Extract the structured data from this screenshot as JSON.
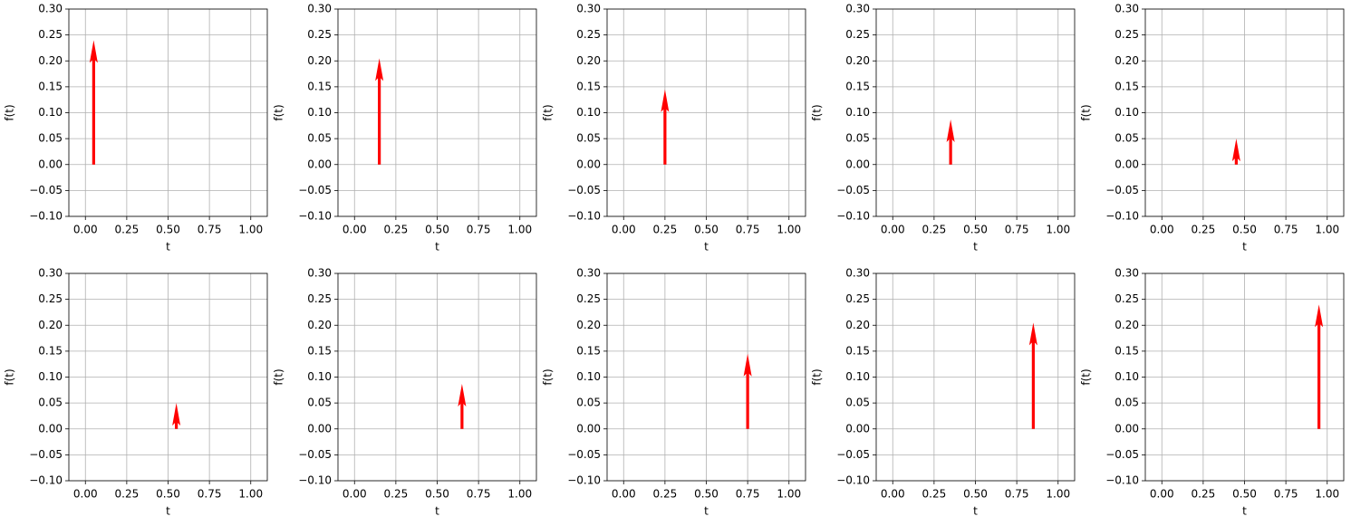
{
  "chart_data": [
    {
      "type": "quiver",
      "x": [
        0.05
      ],
      "values": [
        0.24
      ],
      "color": "#ff0000",
      "xlabel": "t",
      "ylabel": "f(t)",
      "grid": true,
      "xlim": [
        -0.1,
        1.1
      ],
      "ylim": [
        -0.1,
        0.3
      ],
      "xticks": [
        {
          "value": 0,
          "label": "0.00"
        },
        {
          "value": 0.25,
          "label": "0.25"
        },
        {
          "value": 0.5,
          "label": "0.50"
        },
        {
          "value": 0.75,
          "label": "0.75"
        },
        {
          "value": 1,
          "label": "1.00"
        }
      ],
      "yticks": [
        {
          "value": -0.1,
          "label": "−0.10"
        },
        {
          "value": -0.05,
          "label": "−0.05"
        },
        {
          "value": 0,
          "label": "0.00"
        },
        {
          "value": 0.05,
          "label": "0.05"
        },
        {
          "value": 0.1,
          "label": "0.10"
        },
        {
          "value": 0.15,
          "label": "0.15"
        },
        {
          "value": 0.2,
          "label": "0.20"
        },
        {
          "value": 0.25,
          "label": "0.25"
        },
        {
          "value": 0.3,
          "label": "0.30"
        }
      ]
    },
    {
      "type": "quiver",
      "x": [
        0.15
      ],
      "values": [
        0.205
      ],
      "color": "#ff0000",
      "xlabel": "t",
      "ylabel": "f(t)",
      "grid": true,
      "xlim": [
        -0.1,
        1.1
      ],
      "ylim": [
        -0.1,
        0.3
      ],
      "xticks": [
        {
          "value": 0,
          "label": "0.00"
        },
        {
          "value": 0.25,
          "label": "0.25"
        },
        {
          "value": 0.5,
          "label": "0.50"
        },
        {
          "value": 0.75,
          "label": "0.75"
        },
        {
          "value": 1,
          "label": "1.00"
        }
      ],
      "yticks": [
        {
          "value": -0.1,
          "label": "−0.10"
        },
        {
          "value": -0.05,
          "label": "−0.05"
        },
        {
          "value": 0,
          "label": "0.00"
        },
        {
          "value": 0.05,
          "label": "0.05"
        },
        {
          "value": 0.1,
          "label": "0.10"
        },
        {
          "value": 0.15,
          "label": "0.15"
        },
        {
          "value": 0.2,
          "label": "0.20"
        },
        {
          "value": 0.25,
          "label": "0.25"
        },
        {
          "value": 0.3,
          "label": "0.30"
        }
      ]
    },
    {
      "type": "quiver",
      "x": [
        0.25
      ],
      "values": [
        0.145
      ],
      "color": "#ff0000",
      "xlabel": "t",
      "ylabel": "f(t)",
      "grid": true,
      "xlim": [
        -0.1,
        1.1
      ],
      "ylim": [
        -0.1,
        0.3
      ],
      "xticks": [
        {
          "value": 0,
          "label": "0.00"
        },
        {
          "value": 0.25,
          "label": "0.25"
        },
        {
          "value": 0.5,
          "label": "0.50"
        },
        {
          "value": 0.75,
          "label": "0.75"
        },
        {
          "value": 1,
          "label": "1.00"
        }
      ],
      "yticks": [
        {
          "value": -0.1,
          "label": "−0.10"
        },
        {
          "value": -0.05,
          "label": "−0.05"
        },
        {
          "value": 0,
          "label": "0.00"
        },
        {
          "value": 0.05,
          "label": "0.05"
        },
        {
          "value": 0.1,
          "label": "0.10"
        },
        {
          "value": 0.15,
          "label": "0.15"
        },
        {
          "value": 0.2,
          "label": "0.20"
        },
        {
          "value": 0.25,
          "label": "0.25"
        },
        {
          "value": 0.3,
          "label": "0.30"
        }
      ]
    },
    {
      "type": "quiver",
      "x": [
        0.35
      ],
      "values": [
        0.087
      ],
      "color": "#ff0000",
      "xlabel": "t",
      "ylabel": "f(t)",
      "grid": true,
      "xlim": [
        -0.1,
        1.1
      ],
      "ylim": [
        -0.1,
        0.3
      ],
      "xticks": [
        {
          "value": 0,
          "label": "0.00"
        },
        {
          "value": 0.25,
          "label": "0.25"
        },
        {
          "value": 0.5,
          "label": "0.50"
        },
        {
          "value": 0.75,
          "label": "0.75"
        },
        {
          "value": 1,
          "label": "1.00"
        }
      ],
      "yticks": [
        {
          "value": -0.1,
          "label": "−0.10"
        },
        {
          "value": -0.05,
          "label": "−0.05"
        },
        {
          "value": 0,
          "label": "0.00"
        },
        {
          "value": 0.05,
          "label": "0.05"
        },
        {
          "value": 0.1,
          "label": "0.10"
        },
        {
          "value": 0.15,
          "label": "0.15"
        },
        {
          "value": 0.2,
          "label": "0.20"
        },
        {
          "value": 0.25,
          "label": "0.25"
        },
        {
          "value": 0.3,
          "label": "0.30"
        }
      ]
    },
    {
      "type": "quiver",
      "x": [
        0.45
      ],
      "values": [
        0.05
      ],
      "color": "#ff0000",
      "xlabel": "t",
      "ylabel": "f(t)",
      "grid": true,
      "xlim": [
        -0.1,
        1.1
      ],
      "ylim": [
        -0.1,
        0.3
      ],
      "xticks": [
        {
          "value": 0,
          "label": "0.00"
        },
        {
          "value": 0.25,
          "label": "0.25"
        },
        {
          "value": 0.5,
          "label": "0.50"
        },
        {
          "value": 0.75,
          "label": "0.75"
        },
        {
          "value": 1,
          "label": "1.00"
        }
      ],
      "yticks": [
        {
          "value": -0.1,
          "label": "−0.10"
        },
        {
          "value": -0.05,
          "label": "−0.05"
        },
        {
          "value": 0,
          "label": "0.00"
        },
        {
          "value": 0.05,
          "label": "0.05"
        },
        {
          "value": 0.1,
          "label": "0.10"
        },
        {
          "value": 0.15,
          "label": "0.15"
        },
        {
          "value": 0.2,
          "label": "0.20"
        },
        {
          "value": 0.25,
          "label": "0.25"
        },
        {
          "value": 0.3,
          "label": "0.30"
        }
      ]
    },
    {
      "type": "quiver",
      "x": [
        0.55
      ],
      "values": [
        0.05
      ],
      "color": "#ff0000",
      "xlabel": "t",
      "ylabel": "f(t)",
      "grid": true,
      "xlim": [
        -0.1,
        1.1
      ],
      "ylim": [
        -0.1,
        0.3
      ],
      "xticks": [
        {
          "value": 0,
          "label": "0.00"
        },
        {
          "value": 0.25,
          "label": "0.25"
        },
        {
          "value": 0.5,
          "label": "0.50"
        },
        {
          "value": 0.75,
          "label": "0.75"
        },
        {
          "value": 1,
          "label": "1.00"
        }
      ],
      "yticks": [
        {
          "value": -0.1,
          "label": "−0.10"
        },
        {
          "value": -0.05,
          "label": "−0.05"
        },
        {
          "value": 0,
          "label": "0.00"
        },
        {
          "value": 0.05,
          "label": "0.05"
        },
        {
          "value": 0.1,
          "label": "0.10"
        },
        {
          "value": 0.15,
          "label": "0.15"
        },
        {
          "value": 0.2,
          "label": "0.20"
        },
        {
          "value": 0.25,
          "label": "0.25"
        },
        {
          "value": 0.3,
          "label": "0.30"
        }
      ]
    },
    {
      "type": "quiver",
      "x": [
        0.65
      ],
      "values": [
        0.087
      ],
      "color": "#ff0000",
      "xlabel": "t",
      "ylabel": "f(t)",
      "grid": true,
      "xlim": [
        -0.1,
        1.1
      ],
      "ylim": [
        -0.1,
        0.3
      ],
      "xticks": [
        {
          "value": 0,
          "label": "0.00"
        },
        {
          "value": 0.25,
          "label": "0.25"
        },
        {
          "value": 0.5,
          "label": "0.50"
        },
        {
          "value": 0.75,
          "label": "0.75"
        },
        {
          "value": 1,
          "label": "1.00"
        }
      ],
      "yticks": [
        {
          "value": -0.1,
          "label": "−0.10"
        },
        {
          "value": -0.05,
          "label": "−0.05"
        },
        {
          "value": 0,
          "label": "0.00"
        },
        {
          "value": 0.05,
          "label": "0.05"
        },
        {
          "value": 0.1,
          "label": "0.10"
        },
        {
          "value": 0.15,
          "label": "0.15"
        },
        {
          "value": 0.2,
          "label": "0.20"
        },
        {
          "value": 0.25,
          "label": "0.25"
        },
        {
          "value": 0.3,
          "label": "0.30"
        }
      ]
    },
    {
      "type": "quiver",
      "x": [
        0.75
      ],
      "values": [
        0.145
      ],
      "color": "#ff0000",
      "xlabel": "t",
      "ylabel": "f(t)",
      "grid": true,
      "xlim": [
        -0.1,
        1.1
      ],
      "ylim": [
        -0.1,
        0.3
      ],
      "xticks": [
        {
          "value": 0,
          "label": "0.00"
        },
        {
          "value": 0.25,
          "label": "0.25"
        },
        {
          "value": 0.5,
          "label": "0.50"
        },
        {
          "value": 0.75,
          "label": "0.75"
        },
        {
          "value": 1,
          "label": "1.00"
        }
      ],
      "yticks": [
        {
          "value": -0.1,
          "label": "−0.10"
        },
        {
          "value": -0.05,
          "label": "−0.05"
        },
        {
          "value": 0,
          "label": "0.00"
        },
        {
          "value": 0.05,
          "label": "0.05"
        },
        {
          "value": 0.1,
          "label": "0.10"
        },
        {
          "value": 0.15,
          "label": "0.15"
        },
        {
          "value": 0.2,
          "label": "0.20"
        },
        {
          "value": 0.25,
          "label": "0.25"
        },
        {
          "value": 0.3,
          "label": "0.30"
        }
      ]
    },
    {
      "type": "quiver",
      "x": [
        0.85
      ],
      "values": [
        0.205
      ],
      "color": "#ff0000",
      "xlabel": "t",
      "ylabel": "f(t)",
      "grid": true,
      "xlim": [
        -0.1,
        1.1
      ],
      "ylim": [
        -0.1,
        0.3
      ],
      "xticks": [
        {
          "value": 0,
          "label": "0.00"
        },
        {
          "value": 0.25,
          "label": "0.25"
        },
        {
          "value": 0.5,
          "label": "0.50"
        },
        {
          "value": 0.75,
          "label": "0.75"
        },
        {
          "value": 1,
          "label": "1.00"
        }
      ],
      "yticks": [
        {
          "value": -0.1,
          "label": "−0.10"
        },
        {
          "value": -0.05,
          "label": "−0.05"
        },
        {
          "value": 0,
          "label": "0.00"
        },
        {
          "value": 0.05,
          "label": "0.05"
        },
        {
          "value": 0.1,
          "label": "0.10"
        },
        {
          "value": 0.15,
          "label": "0.15"
        },
        {
          "value": 0.2,
          "label": "0.20"
        },
        {
          "value": 0.25,
          "label": "0.25"
        },
        {
          "value": 0.3,
          "label": "0.30"
        }
      ]
    },
    {
      "type": "quiver",
      "x": [
        0.95
      ],
      "values": [
        0.24
      ],
      "color": "#ff0000",
      "xlabel": "t",
      "ylabel": "f(t)",
      "grid": true,
      "xlim": [
        -0.1,
        1.1
      ],
      "ylim": [
        -0.1,
        0.3
      ],
      "xticks": [
        {
          "value": 0,
          "label": "0.00"
        },
        {
          "value": 0.25,
          "label": "0.25"
        },
        {
          "value": 0.5,
          "label": "0.50"
        },
        {
          "value": 0.75,
          "label": "0.75"
        },
        {
          "value": 1,
          "label": "1.00"
        }
      ],
      "yticks": [
        {
          "value": -0.1,
          "label": "−0.10"
        },
        {
          "value": -0.05,
          "label": "−0.05"
        },
        {
          "value": 0,
          "label": "0.00"
        },
        {
          "value": 0.05,
          "label": "0.05"
        },
        {
          "value": 0.1,
          "label": "0.10"
        },
        {
          "value": 0.15,
          "label": "0.15"
        },
        {
          "value": 0.2,
          "label": "0.20"
        },
        {
          "value": 0.25,
          "label": "0.25"
        },
        {
          "value": 0.3,
          "label": "0.30"
        }
      ]
    }
  ]
}
